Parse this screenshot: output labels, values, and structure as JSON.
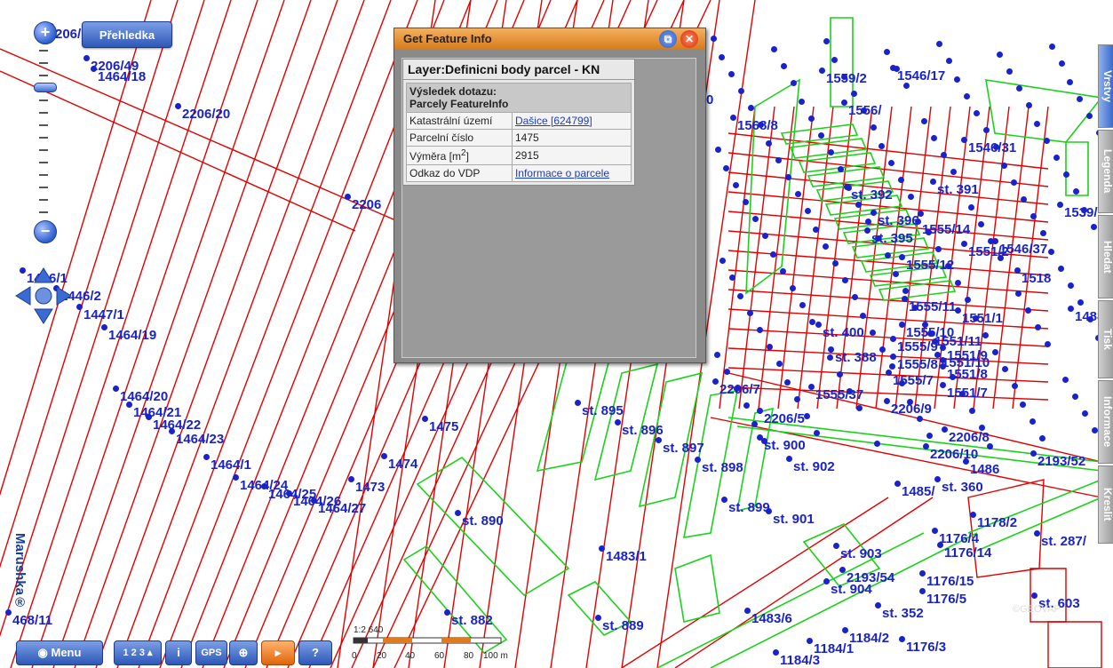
{
  "overview_button": "Přehledka",
  "info_window": {
    "title": "Get Feature Info",
    "layer": "Layer:Definicni body parcel - KN",
    "query_result": "Výsledek dotazu:",
    "feature_type": "Parcely FeatureInfo",
    "rows": [
      {
        "label": "Katastrální území",
        "value": "Dašice [624799]",
        "link": true
      },
      {
        "label": "Parcelní číslo",
        "value": "1475",
        "link": false
      },
      {
        "label": "Výměra [m2]",
        "value": "2915",
        "link": false
      },
      {
        "label": "Odkaz do VDP",
        "value": "Informace o parcele",
        "link": true
      }
    ]
  },
  "right_tabs": [
    "Vrstvy",
    "Legenda",
    "Hledat",
    "Tisk",
    "Informace",
    "Kreslit"
  ],
  "toolbar": {
    "menu": "Menu",
    "coords": "1 2 3",
    "info": "i",
    "gps": "GPS",
    "help": "?"
  },
  "scale": {
    "ratio": "1:2 640",
    "ticks": [
      "0",
      "20",
      "40",
      "60",
      "80",
      "100 m"
    ]
  },
  "brand": "Marushka®",
  "copyright": "©GEOVAP",
  "parcel_labels": [
    "206/",
    "2206/49",
    "1464/18",
    "2206/20",
    "2206",
    "1446/1",
    "1446/2",
    "1447/1",
    "1464/19",
    "1464/20",
    "1464/21",
    "1464/22",
    "1464/23",
    "1464/1",
    "1464/24",
    "1464/25",
    "1464/26",
    "1464/27",
    "1473",
    "1474",
    "1475",
    "468/11",
    "st. 890",
    "1483/1",
    "st. 882",
    "st. 889",
    "st. 895",
    "st. 896",
    "st. 897",
    "st. 898",
    "st. 899",
    "st. 900",
    "st. 901",
    "st. 902",
    "st. 903",
    "st. 904",
    "st. 352",
    "1483/6",
    "2193/54",
    "1176/15",
    "1176/5",
    "1184/2",
    "1176/3",
    "1184/1",
    "1184/3",
    "1176/4",
    "1176/14",
    "1178/2",
    "st. 287/",
    "st. 603",
    "1485/",
    "st. 360",
    "1486",
    "2206/10",
    "2193/52",
    "2206/5",
    "2206/7",
    "1568/8",
    "1559/2",
    "1551/2",
    "1551/1",
    "1551/11",
    "1551/10",
    "1555/14",
    "1555/12",
    "1555/11",
    "1555/10",
    "1555/9",
    "1555/8",
    "1555/7",
    "1546/31",
    "1546/37",
    "1488/1",
    "1539/",
    "0",
    "st. 396",
    "st. 395",
    "st. 392",
    "st. 391",
    "1546/17",
    "1556/",
    "1518",
    "st. 400",
    "st. 388",
    "1555/37",
    "1551/9",
    "1551/8",
    "1551/7",
    "2206/9",
    "2206/8"
  ]
}
